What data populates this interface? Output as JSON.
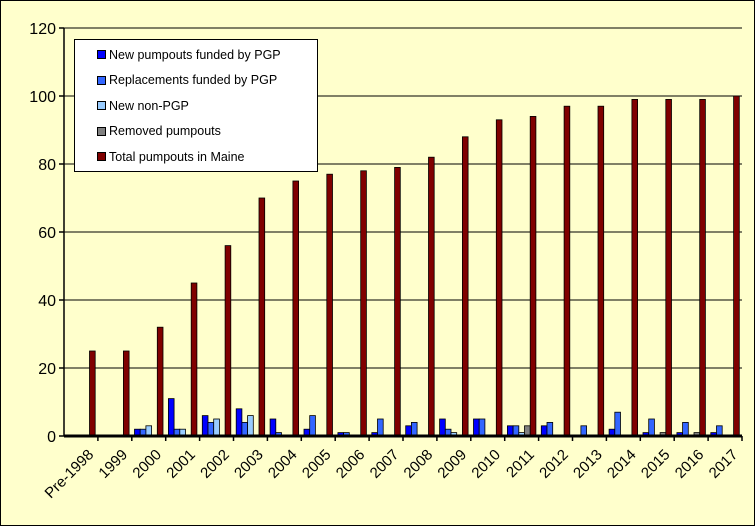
{
  "chart_data": {
    "type": "bar",
    "categories": [
      "Pre-1998",
      "1999",
      "2000",
      "2001",
      "2002",
      "2003",
      "2004",
      "2005",
      "2006",
      "2007",
      "2008",
      "2009",
      "2010",
      "2011",
      "2012",
      "2013",
      "2014",
      "2015",
      "2016",
      "2017"
    ],
    "series": [
      {
        "name": "New pumpouts funded by PGP",
        "color": "#0000FF",
        "values": [
          0,
          0,
          2,
          11,
          6,
          8,
          5,
          2,
          1,
          1,
          3,
          5,
          5,
          3,
          3,
          0,
          2,
          1,
          1,
          1
        ]
      },
      {
        "name": "Replacements funded by PGP",
        "color": "#3366FF",
        "values": [
          0,
          0,
          2,
          2,
          4,
          4,
          1,
          6,
          1,
          5,
          4,
          2,
          5,
          3,
          4,
          3,
          7,
          5,
          4,
          3
        ]
      },
      {
        "name": "New non-PGP",
        "color": "#99CCFF",
        "values": [
          0,
          0,
          3,
          2,
          5,
          6,
          0,
          0,
          0,
          0,
          0,
          1,
          0,
          1,
          0,
          0,
          0,
          0,
          0,
          0
        ]
      },
      {
        "name": "Removed pumpouts",
        "color": "#808080",
        "values": [
          0,
          0,
          0,
          0,
          0,
          0,
          0,
          0,
          0,
          0,
          0,
          0,
          0,
          3,
          0,
          0,
          0,
          1,
          1,
          0
        ]
      },
      {
        "name": "Total pumpouts in Maine",
        "color": "#800000",
        "values": [
          25,
          25,
          32,
          45,
          56,
          70,
          75,
          77,
          78,
          79,
          82,
          88,
          93,
          94,
          97,
          97,
          99,
          99,
          99,
          100
        ]
      }
    ],
    "yticks": [
      "0",
      "20",
      "40",
      "60",
      "80",
      "100",
      "120"
    ],
    "ylim": [
      0,
      120
    ],
    "grid": true,
    "legend": "top-left",
    "plot_background": "#FFFFCC"
  }
}
